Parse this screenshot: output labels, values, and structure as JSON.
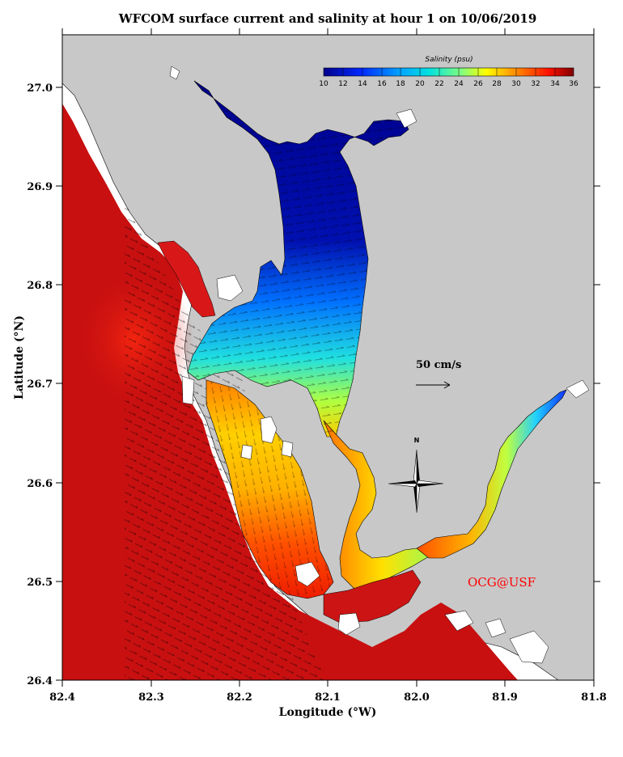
{
  "title": "WFCOM surface current and salinity at hour 1 on 10/06/2019",
  "x_axis": {
    "label": "Longitude (°W)",
    "ticks": [
      "82.4",
      "82.3",
      "82.2",
      "82.1",
      "82.0",
      "81.9",
      "81.8"
    ],
    "values": [
      82.4,
      82.3,
      82.2,
      82.1,
      82.0,
      81.9,
      81.8
    ],
    "range": [
      82.4,
      81.8
    ]
  },
  "y_axis": {
    "label": "Latitude (°N)",
    "ticks": [
      "27.0",
      "26.9",
      "26.8",
      "26.7",
      "26.6",
      "26.5",
      "26.4"
    ],
    "values": [
      27.0,
      26.9,
      26.8,
      26.7,
      26.6,
      26.5,
      26.4
    ],
    "range": [
      26.4,
      27.06
    ]
  },
  "colorbar": {
    "title": "Salinity (psu)",
    "labels": [
      "10",
      "12",
      "14",
      "16",
      "18",
      "20",
      "22",
      "24",
      "26",
      "28",
      "30",
      "32",
      "34",
      "36"
    ],
    "range": [
      10,
      36
    ]
  },
  "scale_vector": {
    "label": "50 cm/s",
    "speed_cm_s": 50
  },
  "north_arrow": {
    "label": "N"
  },
  "credit": {
    "text": "OCG@USF",
    "color": "#ff0000"
  },
  "colors": {
    "land": "#c8c8c8",
    "unresolved_water": "#ffffff",
    "gulf": "#c81010",
    "harbor_fresh": "#00008b",
    "credit": "#ff0000"
  }
}
